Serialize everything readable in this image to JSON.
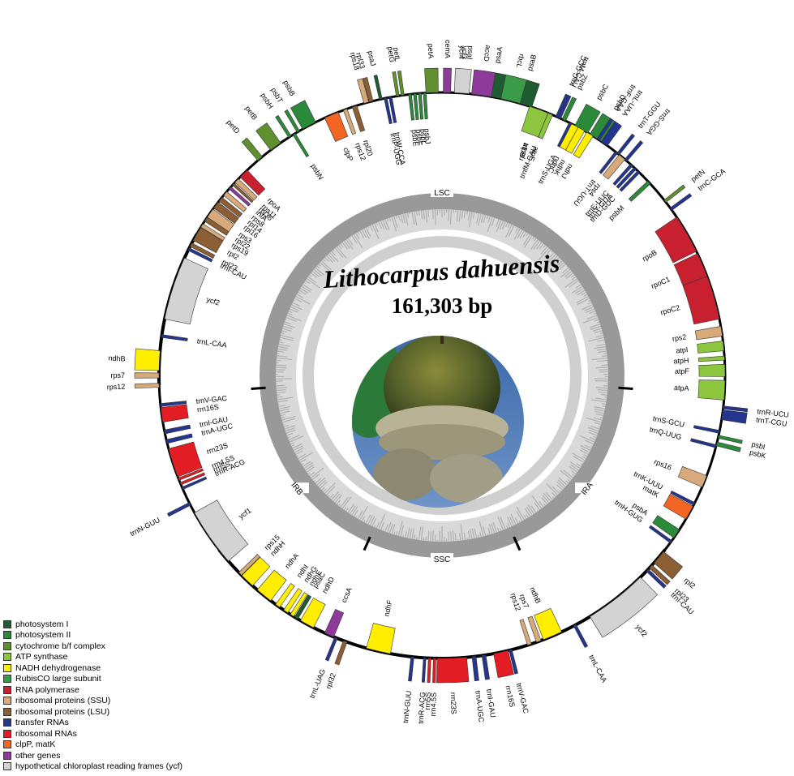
{
  "title": "Lithocarpus dahuensis",
  "genome_size": "161,303 bp",
  "regions": [
    "LSC",
    "IRA",
    "SSC",
    "IRB"
  ],
  "colors": {
    "PSI": "#1e5b30",
    "PSII": "#2a8a3a",
    "cytb6f": "#5f8f2e",
    "ATP": "#8cc63f",
    "NADH": "#ffee00",
    "Rubisco": "#3a9b48",
    "RNApol": "#c8202f",
    "SSU": "#d8a97a",
    "LSU": "#8b5e34",
    "tRNA": "#24358f",
    "rRNA": "#e31d24",
    "clpP": "#f26522",
    "other": "#8e3a9a",
    "ycf": "#d3d3d3"
  },
  "legend": [
    {
      "label": "photosystem I",
      "color": "#1e5b30"
    },
    {
      "label": "photosystem II",
      "color": "#2a8a3a"
    },
    {
      "label": "cytochrome b/f complex",
      "color": "#5f8f2e"
    },
    {
      "label": "ATP synthase",
      "color": "#8cc63f"
    },
    {
      "label": "NADH dehydrogenase",
      "color": "#ffee00"
    },
    {
      "label": "RubisCO large subunit",
      "color": "#3a9b48"
    },
    {
      "label": "RNA polymerase",
      "color": "#c8202f"
    },
    {
      "label": "ribosomal proteins (SSU)",
      "color": "#d8a97a"
    },
    {
      "label": "ribosomal proteins (LSU)",
      "color": "#8b5e34"
    },
    {
      "label": "transfer RNAs",
      "color": "#24358f"
    },
    {
      "label": "ribosomal RNAs",
      "color": "#e31d24"
    },
    {
      "label": "clpP, matK",
      "color": "#f26522"
    },
    {
      "label": "other genes",
      "color": "#8e3a9a"
    },
    {
      "label": "hypothetical chloroplast reading frames (ycf)",
      "color": "#d3d3d3"
    }
  ],
  "genes": [
    {
      "name": "psaA",
      "a": 10,
      "w": 7,
      "out": true,
      "c": "PSI"
    },
    {
      "name": "psaB",
      "a": 16,
      "w": 5,
      "out": true,
      "c": "PSI"
    },
    {
      "name": "rps14",
      "a": 20,
      "w": 1,
      "out": false,
      "c": "SSU"
    },
    {
      "name": "trnfM-CAU",
      "a": 22,
      "w": 0.6,
      "out": false,
      "c": "tRNA"
    },
    {
      "name": "trnG-GCC",
      "a": 24,
      "w": 0.6,
      "out": true,
      "c": "tRNA"
    },
    {
      "name": "psbZ",
      "a": 25.5,
      "w": 0.8,
      "out": true,
      "c": "PSII"
    },
    {
      "name": "trnS-UGA",
      "a": 27,
      "w": 0.6,
      "out": false,
      "c": "tRNA"
    },
    {
      "name": "psbC",
      "a": 29.5,
      "w": 3,
      "out": true,
      "c": "PSII"
    },
    {
      "name": "psbD",
      "a": 33,
      "w": 3,
      "out": true,
      "c": "PSII"
    },
    {
      "name": "trnT-GGU",
      "a": 38.5,
      "w": 0.6,
      "out": true,
      "c": "tRNA"
    },
    {
      "name": "trnE-UUC",
      "a": 42,
      "w": 0.6,
      "out": false,
      "c": "tRNA"
    },
    {
      "name": "trnY-GUA",
      "a": 43,
      "w": 0.6,
      "out": false,
      "c": "tRNA"
    },
    {
      "name": "trnD-GUC",
      "a": 44,
      "w": 0.6,
      "out": false,
      "c": "tRNA"
    },
    {
      "name": "psbM",
      "a": 47,
      "w": 0.8,
      "out": false,
      "c": "PSII"
    },
    {
      "name": "petN",
      "a": 52,
      "w": 0.6,
      "out": true,
      "c": "cytb6f"
    },
    {
      "name": "trnC-GCA",
      "a": 54,
      "w": 0.6,
      "out": true,
      "c": "tRNA"
    },
    {
      "name": "rpoB",
      "a": 60,
      "w": 8,
      "out": false,
      "c": "RNApol"
    },
    {
      "name": "rpoC1",
      "a": 67,
      "w": 5,
      "out": false,
      "c": "RNApol"
    },
    {
      "name": "rpoC2",
      "a": 74,
      "w": 9,
      "out": false,
      "c": "RNApol"
    },
    {
      "name": "rps2",
      "a": 81,
      "w": 2,
      "out": false,
      "c": "SSU"
    },
    {
      "name": "atpI",
      "a": 84,
      "w": 2,
      "out": false,
      "c": "ATP"
    },
    {
      "name": "atpH",
      "a": 86.5,
      "w": 0.8,
      "out": false,
      "c": "ATP"
    },
    {
      "name": "atpF",
      "a": 89,
      "w": 2.5,
      "out": false,
      "c": "ATP"
    },
    {
      "name": "atpA",
      "a": 93,
      "w": 4,
      "out": false,
      "c": "ATP"
    },
    {
      "name": "trnR-UCU",
      "a": 96.5,
      "w": 0.6,
      "out": true,
      "c": "tRNA"
    },
    {
      "name": "trnT-CGU",
      "a": 98,
      "w": 2,
      "out": true,
      "c": "tRNA"
    },
    {
      "name": "psbI",
      "a": 102.5,
      "w": 0.6,
      "out": true,
      "c": "PSII"
    },
    {
      "name": "psbK",
      "a": 104,
      "w": 0.8,
      "out": true,
      "c": "PSII"
    },
    {
      "name": "trnS-GCU",
      "a": 101.5,
      "w": 0.6,
      "out": false,
      "c": "tRNA"
    },
    {
      "name": "trnQ-UUG",
      "a": 104.5,
      "w": 0.6,
      "out": false,
      "c": "tRNA"
    },
    {
      "name": "rps16",
      "a": 112,
      "w": 2.5,
      "out": false,
      "c": "SSU"
    },
    {
      "name": "trnK-UUU",
      "a": 117,
      "w": 0.6,
      "out": false,
      "c": "tRNA"
    },
    {
      "name": "matK",
      "a": 119,
      "w": 3,
      "out": false,
      "c": "clpP"
    },
    {
      "name": "psbA",
      "a": 124,
      "w": 2,
      "out": false,
      "c": "PSII"
    },
    {
      "name": "trnH-GUG",
      "a": 126,
      "w": 0.6,
      "out": false,
      "c": "tRNA"
    },
    {
      "name": "rpl2",
      "a": 130,
      "w": 3,
      "out": true,
      "c": "LSU"
    },
    {
      "name": "rpl23",
      "a": 132.5,
      "w": 0.8,
      "out": true,
      "c": "LSU"
    },
    {
      "name": "trnI-CAU",
      "a": 133.5,
      "w": 0.6,
      "out": true,
      "c": "tRNA"
    },
    {
      "name": "ycf2",
      "a": 142,
      "w": 13,
      "out": true,
      "c": "ycf"
    },
    {
      "name": "trnL-CAA",
      "a": 152,
      "w": 0.6,
      "out": true,
      "c": "tRNA"
    },
    {
      "name": "ndhB",
      "a": 157,
      "w": 4,
      "out": false,
      "c": "NADH"
    },
    {
      "name": "rps7",
      "a": 160,
      "w": 1,
      "out": false,
      "c": "SSU"
    },
    {
      "name": "rps12",
      "a": 162,
      "w": 0.8,
      "out": false,
      "c": "SSU"
    },
    {
      "name": "trnV-GAC",
      "a": 166,
      "w": 0.6,
      "out": true,
      "c": "tRNA"
    },
    {
      "name": "rrn16S",
      "a": 168,
      "w": 3,
      "out": true,
      "c": "rRNA"
    },
    {
      "name": "trnI-GAU",
      "a": 171.5,
      "w": 0.8,
      "out": true,
      "c": "tRNA"
    },
    {
      "name": "trnA-UGC",
      "a": 173.5,
      "w": 0.8,
      "out": true,
      "c": "tRNA"
    },
    {
      "name": "rrn23S",
      "a": 178,
      "w": 6,
      "out": true,
      "c": "rRNA"
    },
    {
      "name": "rrn4.5S",
      "a": 181.5,
      "w": 0.5,
      "out": true,
      "c": "rRNA"
    },
    {
      "name": "rrn5S",
      "a": 182.5,
      "w": 0.5,
      "out": true,
      "c": "rRNA"
    },
    {
      "name": "trnR-ACG",
      "a": 183.5,
      "w": 0.5,
      "out": true,
      "c": "tRNA"
    },
    {
      "name": "trnN-GUU",
      "a": 186,
      "w": 0.6,
      "out": true,
      "c": "tRNA"
    },
    {
      "name": "ndhF",
      "a": 193,
      "w": 5,
      "out": false,
      "c": "NADH"
    },
    {
      "name": "rpl32",
      "a": 200,
      "w": 0.8,
      "out": true,
      "c": "LSU"
    },
    {
      "name": "trnL-UAG",
      "a": 202,
      "w": 0.6,
      "out": true,
      "c": "tRNA"
    },
    {
      "name": "ccsA",
      "a": 203.5,
      "w": 2,
      "out": false,
      "c": "other"
    },
    {
      "name": "ndhD",
      "a": 208.5,
      "w": 3,
      "out": false,
      "c": "NADH"
    },
    {
      "name": "psaC",
      "a": 211,
      "w": 0.8,
      "out": false,
      "c": "PSI"
    },
    {
      "name": "ndhE",
      "a": 212,
      "w": 0.8,
      "out": false,
      "c": "NADH"
    },
    {
      "name": "ndhG",
      "a": 213.5,
      "w": 1,
      "out": false,
      "c": "NADH"
    },
    {
      "name": "ndhI",
      "a": 215.5,
      "w": 1,
      "out": false,
      "c": "NADH"
    },
    {
      "name": "ndhA",
      "a": 219,
      "w": 3.5,
      "out": false,
      "c": "NADH"
    },
    {
      "name": "ndhH",
      "a": 223.5,
      "w": 3,
      "out": false,
      "c": "NADH"
    },
    {
      "name": "rps15",
      "a": 225.5,
      "w": 0.8,
      "out": false,
      "c": "SSU"
    },
    {
      "name": "ycf1",
      "a": 235,
      "w": 12,
      "out": false,
      "c": "ycf"
    },
    {
      "name": "trnN-GUU",
      "a": 243,
      "w": 0.6,
      "out": true,
      "c": "tRNA"
    },
    {
      "name": "trnR-ACG",
      "a": 246.5,
      "w": 0.5,
      "out": false,
      "c": "tRNA"
    },
    {
      "name": "rrn5S",
      "a": 247.5,
      "w": 0.5,
      "out": false,
      "c": "rRNA"
    },
    {
      "name": "rrn4.5S",
      "a": 248.5,
      "w": 0.5,
      "out": false,
      "c": "rRNA"
    },
    {
      "name": "rrn23S",
      "a": 252,
      "w": 6,
      "out": false,
      "c": "rRNA"
    },
    {
      "name": "trnA-UGC",
      "a": 256.5,
      "w": 0.8,
      "out": false,
      "c": "tRNA"
    },
    {
      "name": "trnI-GAU",
      "a": 258.5,
      "w": 0.8,
      "out": false,
      "c": "tRNA"
    },
    {
      "name": "rrn16S",
      "a": 262,
      "w": 3,
      "out": false,
      "c": "rRNA"
    },
    {
      "name": "trnV-GAC",
      "a": 264,
      "w": 0.6,
      "out": false,
      "c": "tRNA"
    },
    {
      "name": "rps12",
      "a": 268,
      "w": 0.8,
      "out": true,
      "c": "SSU"
    },
    {
      "name": "rps7",
      "a": 270,
      "w": 1,
      "out": true,
      "c": "SSU"
    },
    {
      "name": "ndhB",
      "a": 273,
      "w": 4,
      "out": true,
      "c": "NADH"
    },
    {
      "name": "trnL-CAA",
      "a": 278,
      "w": 0.6,
      "out": false,
      "c": "tRNA"
    },
    {
      "name": "ycf2",
      "a": 288,
      "w": 13,
      "out": false,
      "c": "ycf"
    },
    {
      "name": "trnI-CAU",
      "a": 296.5,
      "w": 0.6,
      "out": false,
      "c": "tRNA"
    },
    {
      "name": "rpl23",
      "a": 297.5,
      "w": 0.8,
      "out": false,
      "c": "LSU"
    },
    {
      "name": "rpl2",
      "a": 300,
      "w": 3,
      "out": false,
      "c": "LSU"
    },
    {
      "name": "rps19",
      "a": 302,
      "w": 0.8,
      "out": false,
      "c": "SSU"
    },
    {
      "name": "rpl22",
      "a": 303.5,
      "w": 1,
      "out": false,
      "c": "LSU"
    },
    {
      "name": "rps3",
      "a": 305,
      "w": 2,
      "out": false,
      "c": "SSU"
    },
    {
      "name": "rpl16",
      "a": 307,
      "w": 1.5,
      "out": false,
      "c": "LSU"
    },
    {
      "name": "rpl14",
      "a": 308.5,
      "w": 1,
      "out": false,
      "c": "LSU"
    },
    {
      "name": "rps8",
      "a": 310,
      "w": 1,
      "out": false,
      "c": "SSU"
    },
    {
      "name": "infA",
      "a": 311.5,
      "w": 0.6,
      "out": false,
      "c": "other"
    },
    {
      "name": "rpl36",
      "a": 312.5,
      "w": 0.5,
      "out": false,
      "c": "LSU"
    },
    {
      "name": "rps11",
      "a": 313.5,
      "w": 1,
      "out": false,
      "c": "SSU"
    },
    {
      "name": "rpoA",
      "a": 315.5,
      "w": 2,
      "out": false,
      "c": "RNApol"
    },
    {
      "name": "petD",
      "a": 320,
      "w": 1.2,
      "out": true,
      "c": "cytb6f"
    },
    {
      "name": "petB",
      "a": 324,
      "w": 2.5,
      "out": true,
      "c": "cytb6f"
    },
    {
      "name": "psbH",
      "a": 327.5,
      "w": 0.6,
      "out": true,
      "c": "PSII"
    },
    {
      "name": "psbN",
      "a": 328.5,
      "w": 0.6,
      "out": false,
      "c": "PSII"
    },
    {
      "name": "psbT",
      "a": 329.5,
      "w": 0.6,
      "out": true,
      "c": "PSII"
    },
    {
      "name": "psbB",
      "a": 332,
      "w": 3,
      "out": true,
      "c": "PSII"
    },
    {
      "name": "clpP",
      "a": 337,
      "w": 3,
      "out": false,
      "c": "clpP"
    },
    {
      "name": "rps12",
      "a": 340,
      "w": 0.8,
      "out": false,
      "c": "SSU"
    },
    {
      "name": "rpl20",
      "a": 342,
      "w": 1,
      "out": false,
      "c": "LSU"
    },
    {
      "name": "rps18",
      "a": 344.5,
      "w": 1,
      "out": true,
      "c": "SSU"
    },
    {
      "name": "rpl33",
      "a": 345.5,
      "w": 0.8,
      "out": true,
      "c": "LSU"
    },
    {
      "name": "psaJ",
      "a": 347.5,
      "w": 0.6,
      "out": true,
      "c": "PSI"
    },
    {
      "name": "trnP-UGG",
      "a": 348.5,
      "w": 0.6,
      "out": false,
      "c": "tRNA"
    },
    {
      "name": "trnW-CCA",
      "a": 349.5,
      "w": 0.6,
      "out": false,
      "c": "tRNA"
    },
    {
      "name": "petG",
      "a": 351,
      "w": 0.6,
      "out": true,
      "c": "cytb6f"
    },
    {
      "name": "petL",
      "a": 352,
      "w": 0.6,
      "out": true,
      "c": "cytb6f"
    },
    {
      "name": "psbE",
      "a": 353.5,
      "w": 0.6,
      "out": false,
      "c": "PSII"
    },
    {
      "name": "psbF",
      "a": 354.5,
      "w": 0.6,
      "out": false,
      "c": "PSII"
    },
    {
      "name": "psbL",
      "a": 355.5,
      "w": 0.6,
      "out": false,
      "c": "PSII"
    },
    {
      "name": "psbJ",
      "a": 356.5,
      "w": 0.6,
      "out": false,
      "c": "PSII"
    },
    {
      "name": "petA",
      "a": 358,
      "w": 2.5,
      "out": true,
      "c": "cytb6f"
    },
    {
      "name": "cemA",
      "a": 361,
      "w": 1.5,
      "out": true,
      "c": "other"
    },
    {
      "name": "ycf4",
      "a": 363.5,
      "w": 1.5,
      "out": true,
      "c": "ycf"
    },
    {
      "name": "psaI",
      "a": 365,
      "w": 0.6,
      "out": true,
      "c": "PSI"
    },
    {
      "name": "accD",
      "a": 368,
      "w": 4,
      "out": true,
      "c": "other"
    },
    {
      "name": "rbcL",
      "a": 374,
      "w": 4,
      "out": true,
      "c": "Rubisco"
    },
    {
      "name": "atpB",
      "a": 380,
      "w": 4,
      "out": false,
      "c": "ATP"
    },
    {
      "name": "atpE",
      "a": 382.5,
      "w": 1,
      "out": false,
      "c": "ATP"
    },
    {
      "name": "trnM-CAU",
      "a": 384.5,
      "w": 0.6,
      "out": true,
      "c": "tRNA"
    },
    {
      "name": "ndhC",
      "a": 388,
      "w": 1.5,
      "out": false,
      "c": "NADH"
    },
    {
      "name": "ndhK",
      "a": 389.5,
      "w": 1.5,
      "out": false,
      "c": "NADH"
    },
    {
      "name": "ndhJ",
      "a": 391.5,
      "w": 1.5,
      "out": false,
      "c": "NADH"
    },
    {
      "name": "trnF-GAA",
      "a": 393.5,
      "w": 0.6,
      "out": true,
      "c": "tRNA"
    },
    {
      "name": "trnL-UAA",
      "a": 395,
      "w": 1.5,
      "out": true,
      "c": "tRNA"
    },
    {
      "name": "trnT-UGU",
      "a": 398,
      "w": 0.6,
      "out": false,
      "c": "tRNA"
    },
    {
      "name": "rps4",
      "a": 399.5,
      "w": 1.5,
      "out": false,
      "c": "SSU"
    },
    {
      "name": "trnS-GGA",
      "a": 400.5,
      "w": 0.6,
      "out": true,
      "c": "tRNA"
    },
    {
      "name": "ycf3",
      "a": 364,
      "w": 3,
      "out": true,
      "c": "ycf"
    }
  ]
}
